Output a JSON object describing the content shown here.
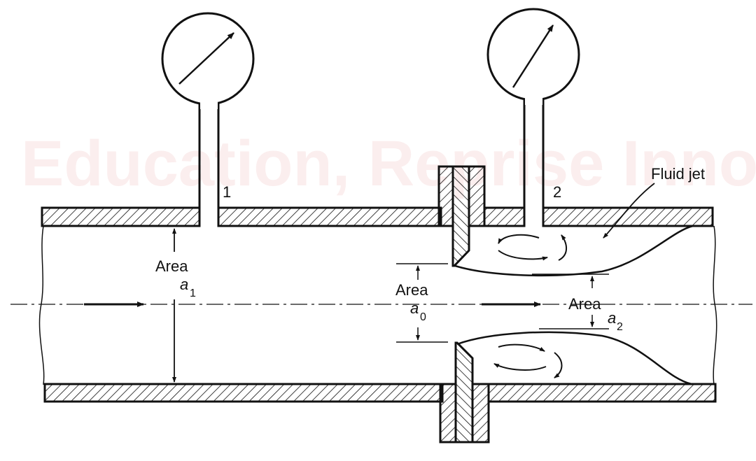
{
  "watermark": {
    "line1": "",
    "line2": "Education, Reprise Innovation"
  },
  "labels": {
    "tap1": "1",
    "tap2": "2",
    "area_word": "Area",
    "a1_base": "a",
    "a1_sub": "1",
    "a0_base": "a",
    "a0_sub": "0",
    "a2_base": "a",
    "a2_sub": "2",
    "fluid_jet": "Fluid jet"
  },
  "colors": {
    "line": "#111111",
    "watermark": "#fbeeee"
  }
}
